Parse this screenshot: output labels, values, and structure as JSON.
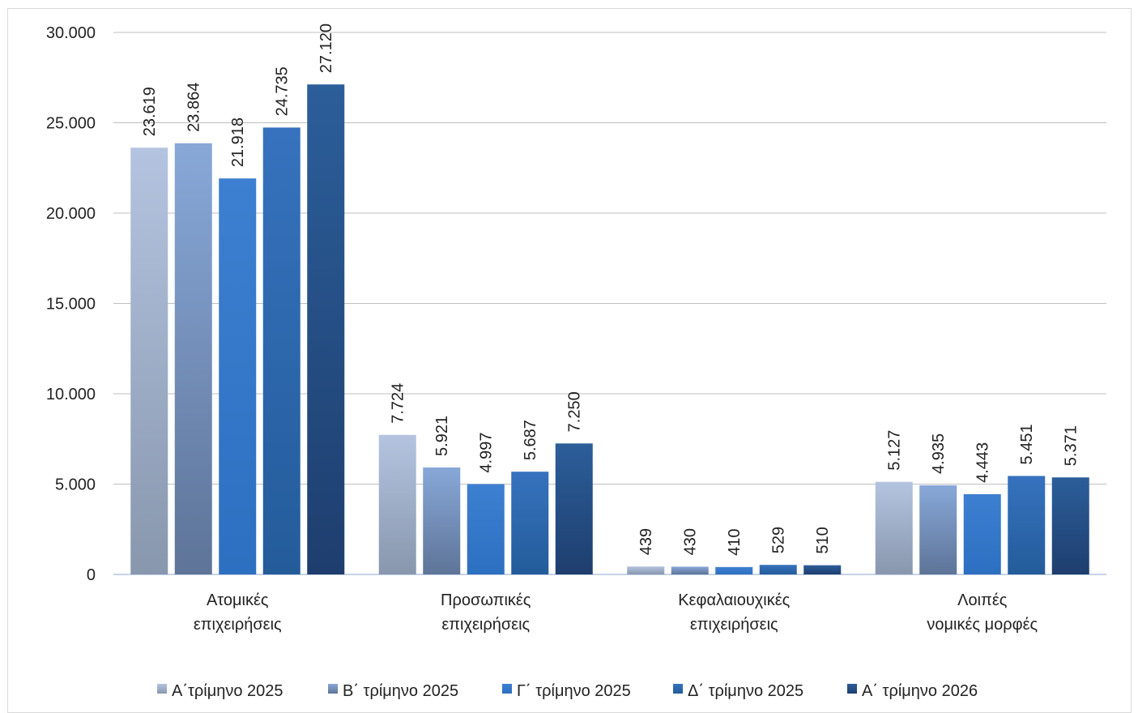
{
  "chart_data": {
    "type": "bar",
    "title": "",
    "xlabel": "",
    "ylabel": "",
    "ylim": [
      0,
      30000
    ],
    "yticks": [
      {
        "value": 0,
        "label": "0"
      },
      {
        "value": 5000,
        "label": "5.000"
      },
      {
        "value": 10000,
        "label": "10.000"
      },
      {
        "value": 15000,
        "label": "15.000"
      },
      {
        "value": 20000,
        "label": "20.000"
      },
      {
        "value": 25000,
        "label": "25.000"
      },
      {
        "value": 30000,
        "label": "30.000"
      }
    ],
    "grid": true,
    "legend_position": "bottom",
    "categories": [
      [
        "Ατομικές",
        "επιχειρήσεις"
      ],
      [
        "Προσωπικές",
        "επιχειρήσεις"
      ],
      [
        "Κεφαλαιουχικές",
        "επιχειρήσεις"
      ],
      [
        "Λοιπές",
        "νομικές μορφές"
      ]
    ],
    "series": [
      {
        "name": "Α΄τρίμηνο 2025",
        "values": [
          23619,
          7724,
          439,
          5127
        ],
        "labels": [
          "23.619",
          "7.724",
          "439",
          "5.127"
        ],
        "color_top": "#b4c4e0",
        "color_bottom": "#8897ad"
      },
      {
        "name": "Β΄ τρίμηνο 2025",
        "values": [
          23864,
          5921,
          430,
          4935
        ],
        "labels": [
          "23.864",
          "5.921",
          "430",
          "4.935"
        ],
        "color_top": "#88a8d8",
        "color_bottom": "#5e7498"
      },
      {
        "name": "Γ΄ τρίμηνο 2025",
        "values": [
          21918,
          4997,
          410,
          4443
        ],
        "labels": [
          "21.918",
          "4.997",
          "410",
          "4.443"
        ],
        "color_top": "#3d7fd0",
        "color_bottom": "#2d6fc0"
      },
      {
        "name": "Δ΄ τρίμηνο 2025",
        "values": [
          24735,
          5687,
          529,
          5451
        ],
        "labels": [
          "24.735",
          "5.687",
          "529",
          "5.451"
        ],
        "color_top": "#3672be",
        "color_bottom": "#245c9a"
      },
      {
        "name": "Α΄ τρίμηνο 2026",
        "values": [
          27120,
          7250,
          510,
          5371
        ],
        "labels": [
          "27.120",
          "7.250",
          "510",
          "5.371"
        ],
        "color_top": "#2c5e9a",
        "color_bottom": "#1e3e6e"
      }
    ]
  }
}
